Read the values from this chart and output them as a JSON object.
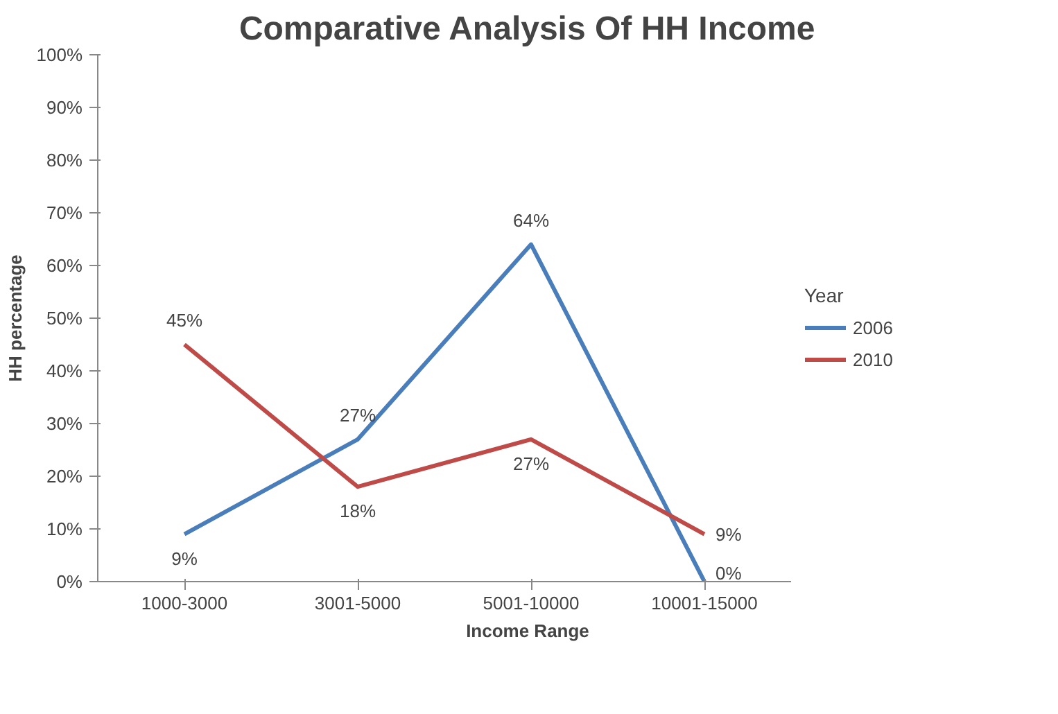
{
  "chart_data": {
    "type": "line",
    "title": "Comparative Analysis Of HH Income",
    "xlabel": "Income Range",
    "ylabel": "HH percentage",
    "categories": [
      "1000-3000",
      "3001-5000",
      "5001-10000",
      "10001-15000"
    ],
    "series": [
      {
        "name": "2006",
        "color": "#4a7ebb",
        "values": [
          9,
          27,
          64,
          0
        ],
        "value_labels": [
          "9%",
          "27%",
          "64%",
          "0%"
        ]
      },
      {
        "name": "2010",
        "color": "#be4b48",
        "values": [
          45,
          18,
          27,
          9
        ],
        "value_labels": [
          "45%",
          "18%",
          "27%",
          "9%"
        ]
      }
    ],
    "ylim": [
      0,
      100
    ],
    "yticks": [
      {
        "value": 0,
        "label": "0%"
      },
      {
        "value": 10,
        "label": "10%"
      },
      {
        "value": 20,
        "label": "20%"
      },
      {
        "value": 30,
        "label": "30%"
      },
      {
        "value": 40,
        "label": "40%"
      },
      {
        "value": 50,
        "label": "50%"
      },
      {
        "value": 60,
        "label": "60%"
      },
      {
        "value": 70,
        "label": "70%"
      },
      {
        "value": 80,
        "label": "80%"
      },
      {
        "value": 90,
        "label": "90%"
      },
      {
        "value": 100,
        "label": "100%"
      }
    ],
    "legend": "right",
    "legend_title": "Year",
    "grid": false,
    "marker": "none",
    "line_style": "solid"
  }
}
